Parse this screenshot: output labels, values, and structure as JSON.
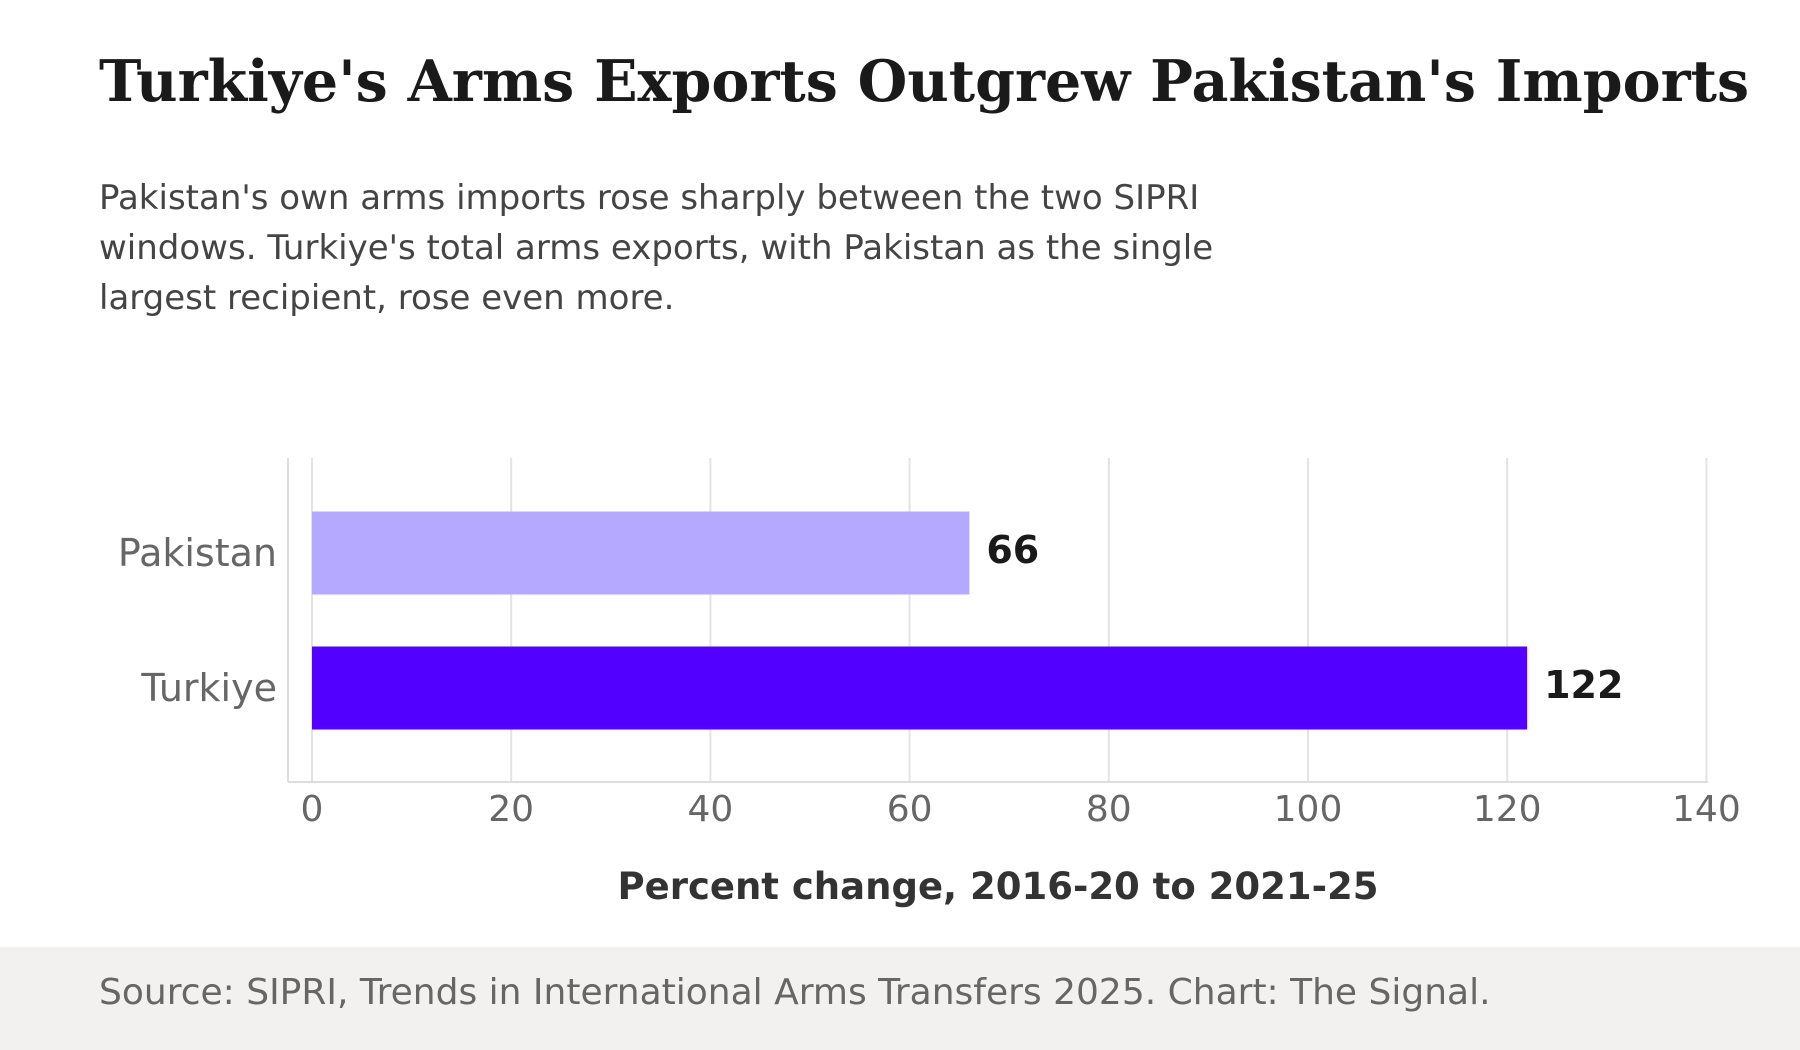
{
  "title": "Turkiye's Arms Exports Outgrew Pakistan's Imports",
  "subtitle": "Pakistan's own arms imports rose sharply between the two SIPRI windows. Turkiye's total arms exports, with Pakistan as the single largest recipient, rose even more.",
  "source": "Source: SIPRI, Trends in International Arms Transfers 2025. Chart: The Signal.",
  "chart_data": {
    "type": "bar",
    "orientation": "horizontal",
    "categories": [
      "Pakistan",
      "Turkiye"
    ],
    "values": [
      66,
      122
    ],
    "colors": [
      "#b5a8ff",
      "#5200ff"
    ],
    "xlabel": "Percent change, 2016-20 to 2021-25",
    "ylabel": "",
    "xlim": [
      0,
      140
    ],
    "xticks": [
      "0",
      "20",
      "40",
      "60",
      "80",
      "100",
      "120",
      "140"
    ],
    "data_labels": [
      "66",
      "122"
    ],
    "grid": "vertical"
  }
}
